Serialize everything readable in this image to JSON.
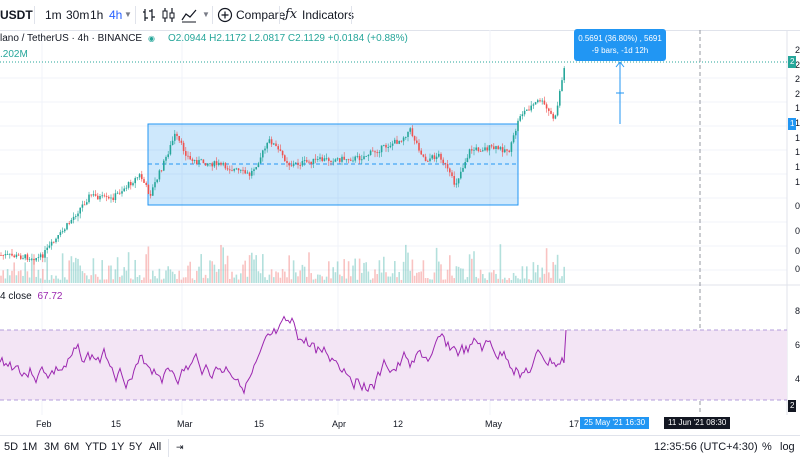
{
  "toolbar": {
    "symbol": "USDT",
    "intervals": [
      "1m",
      "30m",
      "1h",
      "4h"
    ],
    "active_interval": "4h",
    "compare_label": "Compare",
    "indicators_label": "Indicators"
  },
  "legend": {
    "title": "lano / TetherUS · 4h · BINANCE",
    "ohlc": "O2.0944 H2.1172 L2.0817 C2.1129 +0.0184 (+0.88%)",
    "volume": ".202M"
  },
  "tooltip": {
    "line1": "0.5691 (36.80%) , 5691",
    "line2": "-9 bars, -1d 12h"
  },
  "rsi": {
    "label": "4 close",
    "value": "67.72",
    "axis_ticks": [
      "8",
      "6",
      "4",
      "2"
    ]
  },
  "price_axis_ticks": [
    "2",
    "2",
    "2",
    "2",
    "1",
    "1",
    "1",
    "1",
    "1",
    "1",
    "0",
    "0",
    "0",
    "0"
  ],
  "time_axis": {
    "labels": [
      "Feb",
      "15",
      "Mar",
      "15",
      "Apr",
      "12",
      "May",
      "17"
    ],
    "highlight_start": "25 May '21   16:30",
    "highlight_end": "11 Jun '21   08:30"
  },
  "bottom": {
    "ranges": [
      "5D",
      "1M",
      "3M",
      "6M",
      "YTD",
      "1Y",
      "5Y",
      "All"
    ],
    "clock": "12:35:56 (UTC+4:30)",
    "percent_label": "%",
    "log_label": "log"
  },
  "colors": {
    "up": "#26a69a",
    "down": "#ef5350",
    "accent": "#2962ff",
    "range_box": "#2196f3",
    "rsi_line": "#9c27b0",
    "rsi_band": "#f3e5f5"
  }
}
